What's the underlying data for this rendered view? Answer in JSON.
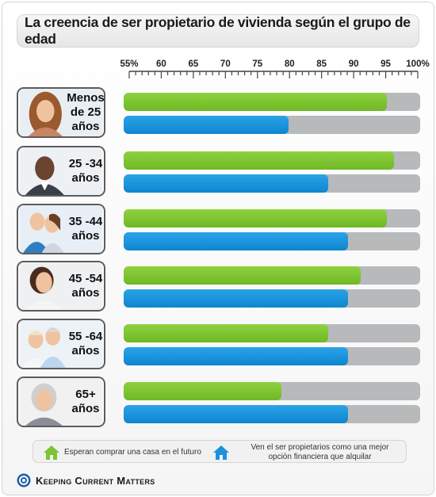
{
  "colors": {
    "green": "#7cc431",
    "blue": "#1a93dd",
    "track": "#b7b9bb",
    "brand": "#1c5fa8"
  },
  "chart_data": {
    "type": "bar",
    "orientation": "horizontal",
    "title": "La creencia de ser propietario de vivienda según el grupo de edad",
    "xlabel": "",
    "ylabel": "",
    "xlim": [
      55,
      100
    ],
    "ticks": [
      "55%",
      "60",
      "65",
      "70",
      "75",
      "80",
      "85",
      "90",
      "95",
      "100%"
    ],
    "tick_values": [
      55,
      60,
      65,
      70,
      75,
      80,
      85,
      90,
      95,
      100
    ],
    "categories": [
      "Menos de 25 años",
      "25 -34 años",
      "35 -44 años",
      "45 -54 años",
      "55 -64 años",
      "65+ años"
    ],
    "series": [
      {
        "name": "Esperan comprar una casa en el futuro",
        "values": [
          95,
          96,
          95,
          91,
          86,
          79
        ]
      },
      {
        "name": "Ven el ser propietarios como una mejor opción financiera que alquilar",
        "values": [
          80,
          86,
          89,
          89,
          89,
          89
        ]
      }
    ],
    "legend_position": "bottom"
  },
  "rows": [
    {
      "label_lines": [
        "Menos",
        "de 25",
        "años"
      ],
      "photo_icon": "young-woman-photo-icon"
    },
    {
      "label_lines": [
        "25 -34",
        "años"
      ],
      "photo_icon": "young-man-photo-icon"
    },
    {
      "label_lines": [
        "35 -44",
        "años"
      ],
      "photo_icon": "couple-photo-icon"
    },
    {
      "label_lines": [
        "45 -54",
        "años"
      ],
      "photo_icon": "woman-photo-icon"
    },
    {
      "label_lines": [
        "55 -64",
        "años"
      ],
      "photo_icon": "senior-couple-photo-icon"
    },
    {
      "label_lines": [
        "65+",
        "años"
      ],
      "photo_icon": "elderly-woman-photo-icon"
    }
  ],
  "legend": {
    "green_icon": "house-icon",
    "blue_icon": "house-icon",
    "green_text": "Esperan comprar una casa en el futuro",
    "blue_text_line1": "Ven el ser propietarios como una mejor",
    "blue_text_line2": "opción financiera que alquilar"
  },
  "brand": {
    "name": "Keeping Current Matters",
    "icon": "kcm-logo-icon"
  }
}
